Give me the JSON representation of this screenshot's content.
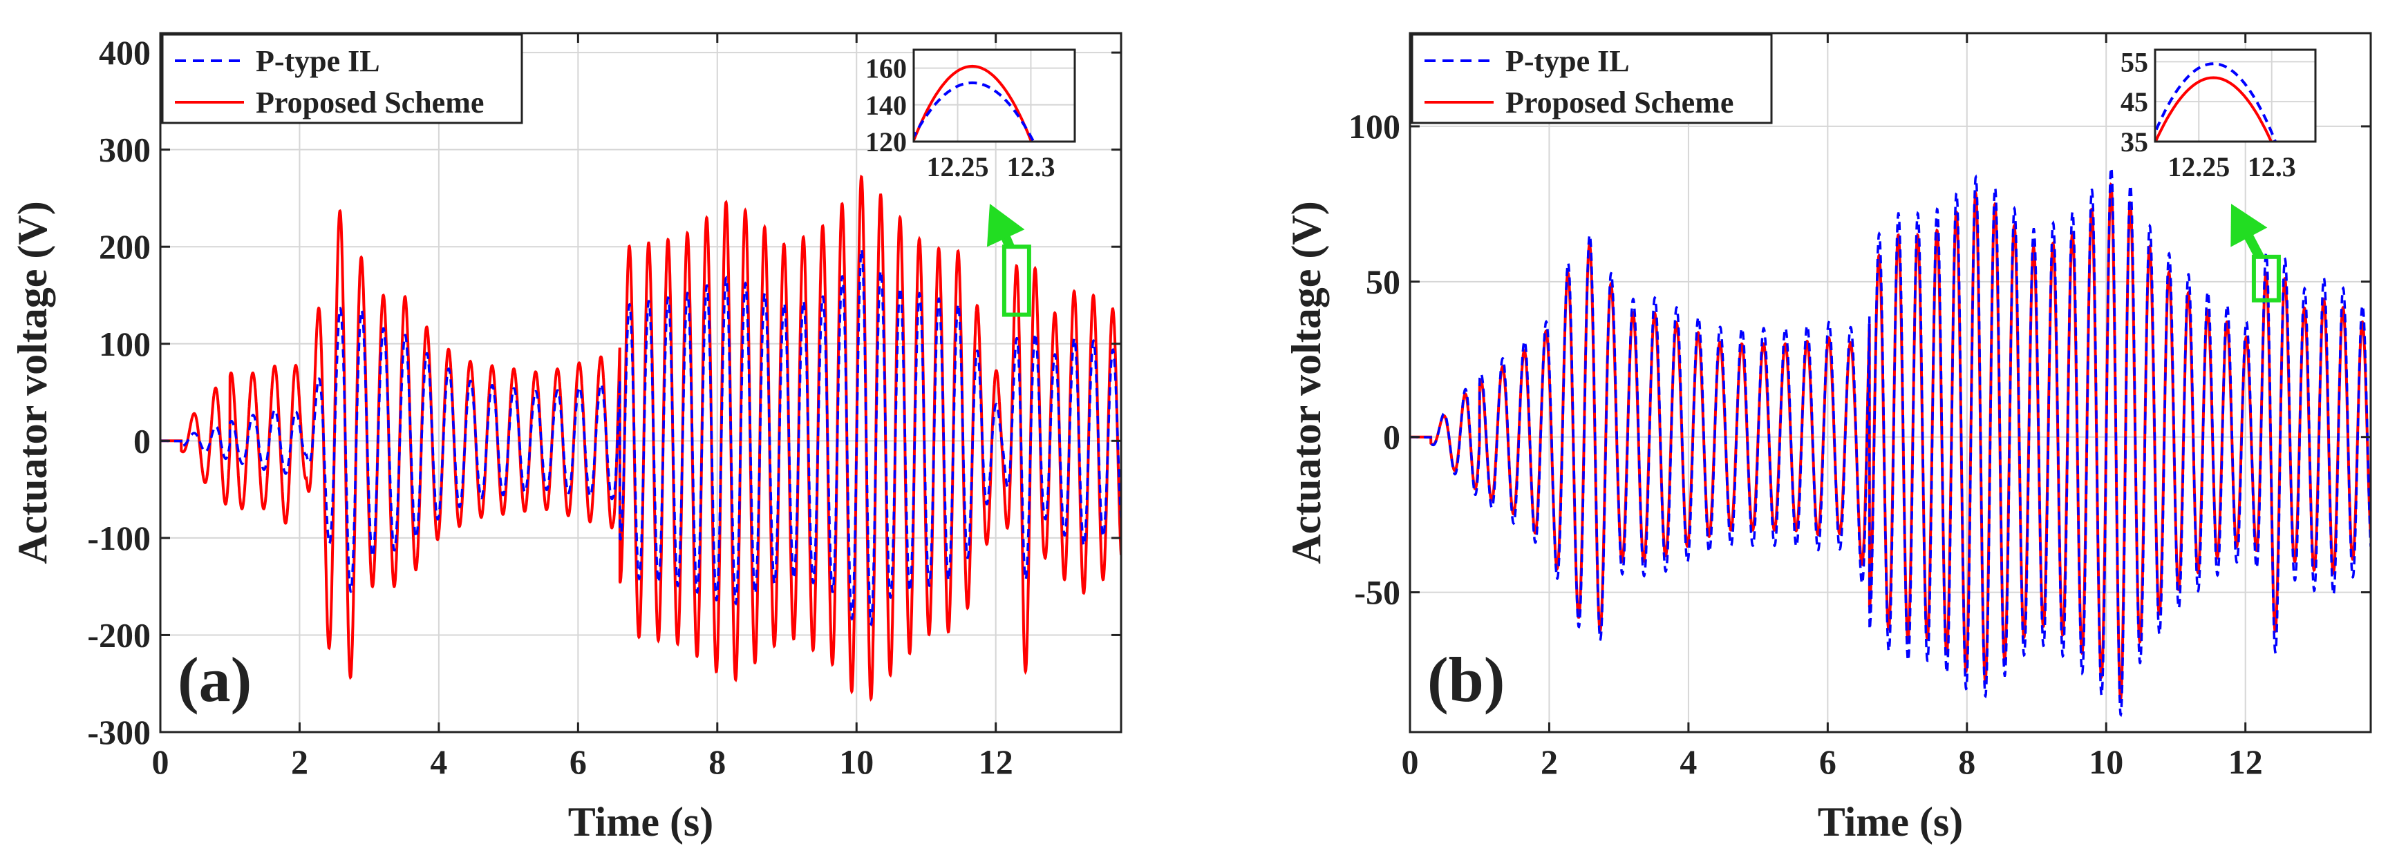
{
  "chart_data": [
    {
      "type": "line",
      "panel_label": "(a)",
      "xlabel": "Time (s)",
      "ylabel": "Actuator voltage (V)",
      "xlim": [
        0,
        13.8
      ],
      "ylim": [
        -300,
        420
      ],
      "xticks": [
        0,
        2,
        4,
        6,
        8,
        10,
        12
      ],
      "xtick_labels": [
        "0",
        "2",
        "4",
        "6",
        "8",
        "10",
        "12"
      ],
      "yticks": [
        -300,
        -200,
        -100,
        0,
        100,
        200,
        300,
        400
      ],
      "ytick_labels": [
        "-300",
        "-200",
        "-100",
        "0",
        "100",
        "200",
        "300",
        "400"
      ],
      "grid": true,
      "legend_position": "top-left",
      "series": [
        {
          "name": "P-type IL",
          "color": "#0000ff",
          "style": "dashed"
        },
        {
          "name": "Proposed Scheme",
          "color": "#ff0000",
          "style": "solid"
        }
      ],
      "envelope": {
        "t": [
          0,
          0.3,
          0.6,
          1.0,
          1.5,
          1.9,
          2.1,
          2.4,
          2.7,
          3.0,
          3.5,
          4.0,
          4.5,
          5.0,
          5.5,
          6.0,
          6.5,
          6.7,
          7.5,
          8.2,
          9.0,
          9.6,
          10.1,
          10.5,
          11.0,
          11.5,
          11.9,
          12.1,
          12.4,
          12.7,
          13.2,
          13.8
        ],
        "proposed": [
          0,
          10,
          40,
          70,
          70,
          90,
          40,
          210,
          255,
          150,
          150,
          100,
          80,
          75,
          70,
          80,
          90,
          200,
          210,
          250,
          200,
          225,
          275,
          240,
          200,
          195,
          100,
          50,
          250,
          120,
          160,
          130
        ],
        "ptype": [
          0,
          5,
          10,
          20,
          30,
          35,
          15,
          100,
          160,
          120,
          110,
          80,
          60,
          55,
          50,
          55,
          60,
          140,
          150,
          170,
          140,
          150,
          200,
          160,
          150,
          140,
          60,
          20,
          150,
          80,
          110,
          90
        ]
      },
      "inset": {
        "xlim": [
          12.22,
          12.33
        ],
        "ylim": [
          120,
          170
        ],
        "xticks": [
          12.25,
          12.3
        ],
        "xtick_labels": [
          "12.25",
          "12.3"
        ],
        "yticks": [
          120,
          140,
          160
        ],
        "ytick_labels": [
          "120",
          "140",
          "160"
        ],
        "zoom_time": 12.3,
        "zoom_range": [
          130,
          200
        ],
        "peak_time": 12.26,
        "peak_proposed": 161,
        "peak_ptype": 152,
        "half_width": 0.045
      }
    },
    {
      "type": "line",
      "panel_label": "(b)",
      "xlabel": "Time (s)",
      "ylabel": "Actuator voltage (V)",
      "xlim": [
        0,
        13.8
      ],
      "ylim": [
        -95,
        130
      ],
      "xticks": [
        0,
        2,
        4,
        6,
        8,
        10,
        12
      ],
      "xtick_labels": [
        "0",
        "2",
        "4",
        "6",
        "8",
        "10",
        "12"
      ],
      "yticks": [
        -50,
        0,
        50,
        100
      ],
      "ytick_labels": [
        "-50",
        "0",
        "50",
        "100"
      ],
      "grid": true,
      "legend_position": "top-left",
      "series": [
        {
          "name": "P-type IL",
          "color": "#0000ff",
          "style": "dashed"
        },
        {
          "name": "Proposed Scheme",
          "color": "#ff0000",
          "style": "solid"
        }
      ],
      "envelope": {
        "t": [
          0,
          0.3,
          0.6,
          1.0,
          1.5,
          2.0,
          2.3,
          2.7,
          3.0,
          3.5,
          4.0,
          4.5,
          5.0,
          5.5,
          6.0,
          6.4,
          6.6,
          7.0,
          7.5,
          8.2,
          9.0,
          9.5,
          10.2,
          10.5,
          11.0,
          11.5,
          11.9,
          12.1,
          12.4,
          12.7,
          13.2,
          13.8
        ],
        "proposed": [
          0,
          2,
          10,
          18,
          25,
          35,
          55,
          65,
          40,
          40,
          35,
          30,
          30,
          30,
          32,
          30,
          55,
          65,
          65,
          80,
          60,
          65,
          85,
          65,
          50,
          40,
          35,
          30,
          65,
          40,
          45,
          35
        ],
        "ptype": [
          0,
          2,
          11,
          20,
          28,
          38,
          58,
          68,
          44,
          45,
          40,
          35,
          35,
          35,
          37,
          35,
          62,
          72,
          72,
          85,
          66,
          72,
          90,
          72,
          56,
          46,
          40,
          35,
          72,
          46,
          52,
          40
        ]
      },
      "inset": {
        "xlim": [
          12.22,
          12.33
        ],
        "ylim": [
          35,
          58
        ],
        "xticks": [
          12.25,
          12.3
        ],
        "xtick_labels": [
          "12.25",
          "12.3"
        ],
        "yticks": [
          35,
          45,
          55
        ],
        "ytick_labels": [
          "35",
          "45",
          "55"
        ],
        "zoom_time": 12.3,
        "zoom_range": [
          44,
          58
        ],
        "peak_time": 12.26,
        "peak_proposed": 51,
        "peak_ptype": 54.5,
        "half_width": 0.045
      }
    }
  ]
}
